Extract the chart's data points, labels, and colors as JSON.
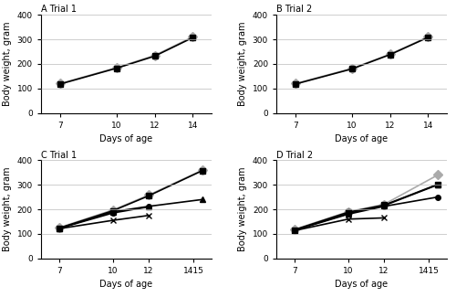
{
  "days_AB": [
    7,
    10,
    12,
    14
  ],
  "days_CD": [
    7,
    10,
    12,
    14,
    15
  ],
  "panels": [
    {
      "title": "A Trial 1",
      "control": [
        120,
        185,
        235,
        310
      ],
      "challenge": [
        118,
        183,
        232,
        307
      ],
      "ylim": [
        0,
        400
      ],
      "yticks": [
        0,
        100,
        200,
        300,
        400
      ],
      "xticks": [
        7,
        10,
        12,
        14
      ],
      "xticklabels": [
        "7",
        "10",
        "12",
        "14"
      ],
      "xlim": [
        6,
        15
      ],
      "type": "AB"
    },
    {
      "title": "B Trial 2",
      "control": [
        120,
        182,
        240,
        310
      ],
      "challenge": [
        118,
        180,
        238,
        308
      ],
      "ylim": [
        0,
        400
      ],
      "yticks": [
        0,
        100,
        200,
        300,
        400
      ],
      "xticks": [
        7,
        10,
        12,
        14
      ],
      "xticklabels": [
        "7",
        "10",
        "12",
        "14"
      ],
      "xlim": [
        6,
        15
      ],
      "type": "AB"
    },
    {
      "title": "C Trial 1",
      "control": [
        125,
        197,
        258,
        null,
        360
      ],
      "no_lesion": [
        123,
        194,
        255,
        null,
        358
      ],
      "airsac": [
        122,
        190,
        212,
        null,
        240
      ],
      "systemic": [
        122,
        185,
        210,
        null,
        null
      ],
      "died": [
        121,
        155,
        175,
        null,
        null
      ],
      "ylim": [
        0,
        400
      ],
      "yticks": [
        0,
        100,
        200,
        300,
        400
      ],
      "xticks": [
        7,
        10,
        12,
        14.5
      ],
      "xticklabels": [
        "7",
        "10",
        "12",
        "1415"
      ],
      "xlim": [
        6,
        15.5
      ],
      "type": "CD"
    },
    {
      "title": "D Trial 2",
      "control": [
        118,
        190,
        220,
        null,
        340
      ],
      "no_lesion": [
        116,
        188,
        217,
        null,
        302
      ],
      "airsac": [
        115,
        183,
        215,
        null,
        300
      ],
      "systemic": [
        114,
        180,
        212,
        null,
        250
      ],
      "died": [
        113,
        160,
        165,
        null,
        null
      ],
      "ylim": [
        0,
        400
      ],
      "yticks": [
        0,
        100,
        200,
        300,
        400
      ],
      "xticks": [
        7,
        10,
        12,
        14.5
      ],
      "xticklabels": [
        "7",
        "10",
        "12",
        "1415"
      ],
      "xlim": [
        6,
        15.5
      ],
      "type": "CD"
    }
  ],
  "control_color": "#aaaaaa",
  "challenge_color": "#000000",
  "control_marker": "D",
  "challenge_marker": "s",
  "airsac_marker": "^",
  "systemic_marker": "o",
  "died_marker": "x",
  "linewidth": 1.2,
  "markersize": 5,
  "xlabel": "Days of age",
  "ylabel": "Body weight, gram"
}
